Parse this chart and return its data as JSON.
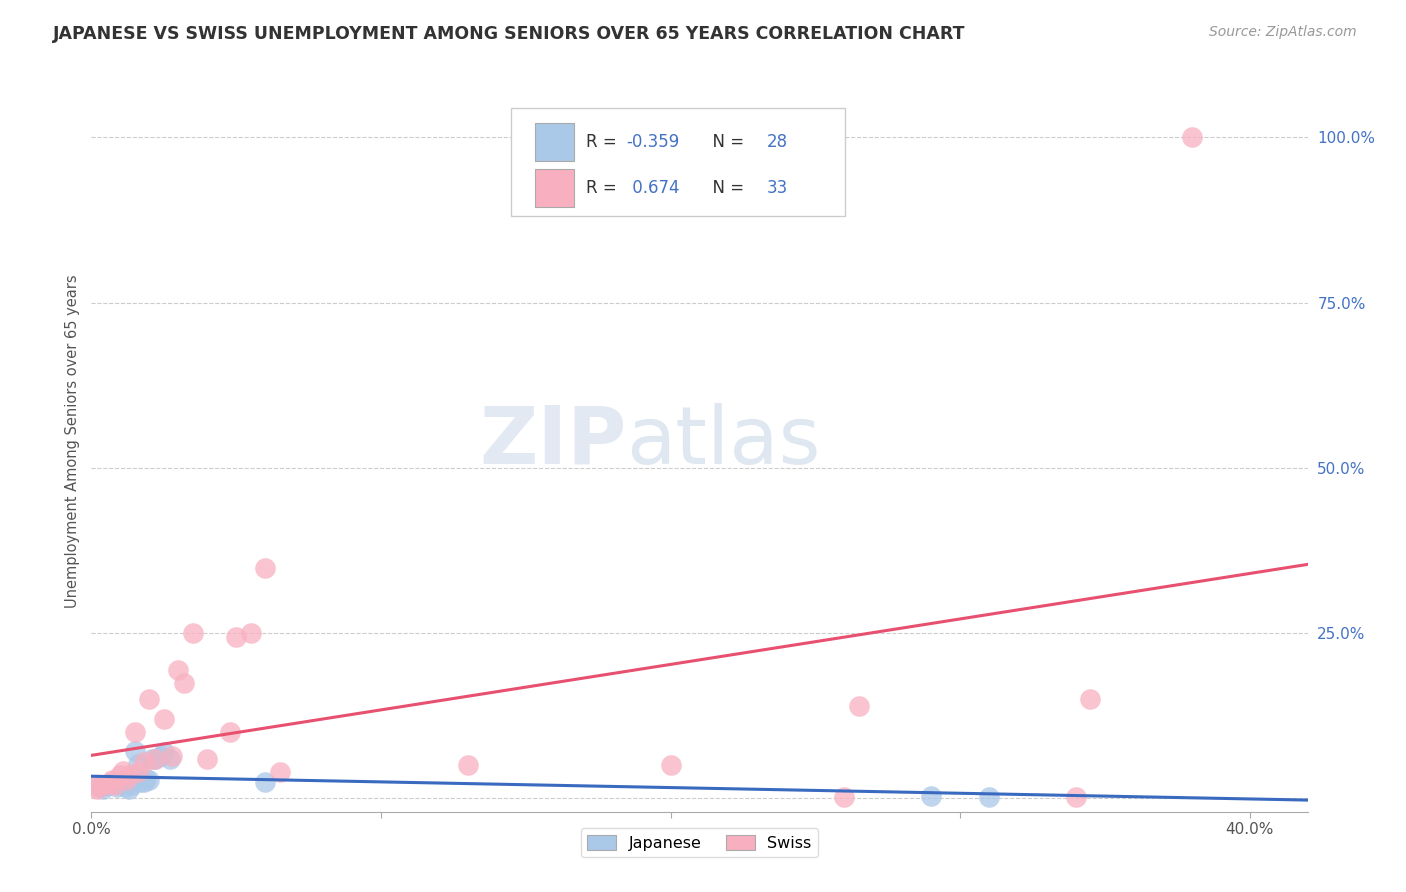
{
  "title": "JAPANESE VS SWISS UNEMPLOYMENT AMONG SENIORS OVER 65 YEARS CORRELATION CHART",
  "source": "Source: ZipAtlas.com",
  "ylabel": "Unemployment Among Seniors over 65 years",
  "xlim": [
    0.0,
    0.42
  ],
  "ylim": [
    -0.02,
    1.1
  ],
  "xticks": [
    0.0,
    0.1,
    0.2,
    0.3,
    0.4
  ],
  "xtick_labels": [
    "0.0%",
    "",
    "",
    "",
    "40.0%"
  ],
  "yticks_right": [
    0.25,
    0.5,
    0.75,
    1.0
  ],
  "ytick_labels_right": [
    "25.0%",
    "50.0%",
    "75.0%",
    "100.0%"
  ],
  "legend_R": [
    "-0.359",
    "0.674"
  ],
  "legend_N": [
    "28",
    "33"
  ],
  "japanese_color": "#aac8e8",
  "swiss_color": "#f8b0c0",
  "japanese_line_color": "#3a6abf",
  "swiss_line_color": "#e85070",
  "watermark_zip": "ZIP",
  "watermark_atlas": "atlas",
  "background_color": "#ffffff",
  "grid_color": "#cccccc",
  "japanese_x": [
    0.002,
    0.003,
    0.004,
    0.005,
    0.006,
    0.006,
    0.007,
    0.008,
    0.009,
    0.01,
    0.011,
    0.012,
    0.013,
    0.014,
    0.015,
    0.016,
    0.017,
    0.018,
    0.019,
    0.02,
    0.021,
    0.022,
    0.024,
    0.025,
    0.027,
    0.06,
    0.29,
    0.31
  ],
  "japanese_y": [
    0.02,
    0.018,
    0.015,
    0.02,
    0.022,
    0.02,
    0.025,
    0.022,
    0.018,
    0.022,
    0.025,
    0.018,
    0.015,
    0.02,
    0.072,
    0.052,
    0.025,
    0.025,
    0.03,
    0.028,
    0.06,
    0.06,
    0.065,
    0.07,
    0.06,
    0.025,
    0.004,
    0.003
  ],
  "swiss_x": [
    0.001,
    0.002,
    0.004,
    0.006,
    0.007,
    0.008,
    0.01,
    0.011,
    0.012,
    0.013,
    0.015,
    0.016,
    0.018,
    0.02,
    0.022,
    0.025,
    0.028,
    0.03,
    0.032,
    0.035,
    0.04,
    0.048,
    0.05,
    0.055,
    0.06,
    0.065,
    0.13,
    0.2,
    0.26,
    0.265,
    0.34,
    0.345,
    0.38
  ],
  "swiss_y": [
    0.018,
    0.015,
    0.02,
    0.022,
    0.028,
    0.02,
    0.035,
    0.042,
    0.028,
    0.035,
    0.1,
    0.04,
    0.055,
    0.15,
    0.06,
    0.12,
    0.065,
    0.195,
    0.175,
    0.25,
    0.06,
    0.1,
    0.245,
    0.25,
    0.348,
    0.04,
    0.05,
    0.05,
    0.002,
    0.14,
    0.002,
    0.15,
    1.0
  ]
}
